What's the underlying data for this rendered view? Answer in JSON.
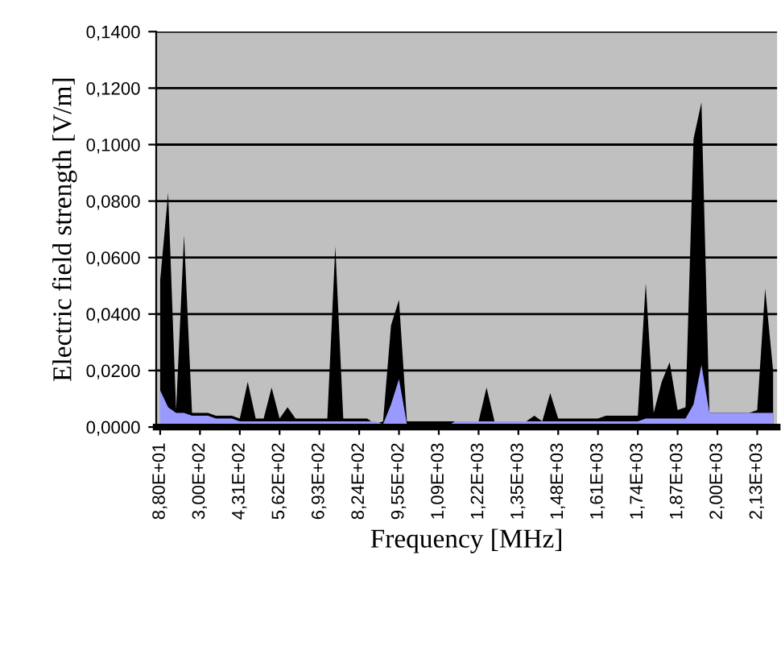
{
  "chart_data": {
    "type": "area",
    "xlabel": "Frequency [MHz]",
    "ylabel": "Electric field strength [V/m]",
    "categories": [
      "8,80E+01",
      null,
      null,
      null,
      null,
      "3,00E+02",
      null,
      null,
      null,
      null,
      "4,31E+02",
      null,
      null,
      null,
      null,
      "5,62E+02",
      null,
      null,
      null,
      null,
      "6,93E+02",
      null,
      null,
      null,
      null,
      "8,24E+02",
      null,
      null,
      null,
      null,
      "9,55E+02",
      null,
      null,
      null,
      null,
      "1,09E+03",
      null,
      null,
      null,
      null,
      "1,22E+03",
      null,
      null,
      null,
      null,
      "1,35E+03",
      null,
      null,
      null,
      null,
      "1,48E+03",
      null,
      null,
      null,
      null,
      "1,61E+03",
      null,
      null,
      null,
      null,
      "1,74E+03",
      null,
      null,
      null,
      null,
      "1,87E+03",
      null,
      null,
      null,
      null,
      "2,00E+03",
      null,
      null,
      null,
      null,
      "2,13E+03",
      null,
      null
    ],
    "series": [
      {
        "color": "#000000",
        "values": [
          0.052,
          0.083,
          0.006,
          0.068,
          0.005,
          0.005,
          0.005,
          0.004,
          0.004,
          0.004,
          0.003,
          0.016,
          0.003,
          0.003,
          0.014,
          0.003,
          0.007,
          0.003,
          0.003,
          0.003,
          0.003,
          0.003,
          0.064,
          0.003,
          0.003,
          0.003,
          0.003,
          0.001,
          0.002,
          0.036,
          0.045,
          0.002,
          0.002,
          0.002,
          0.002,
          0.002,
          0.002,
          0.002,
          0.002,
          0.002,
          0.002,
          0.014,
          0.002,
          0.002,
          0.002,
          0.002,
          0.002,
          0.004,
          0.002,
          0.012,
          0.003,
          0.003,
          0.003,
          0.003,
          0.003,
          0.003,
          0.004,
          0.004,
          0.004,
          0.004,
          0.004,
          0.051,
          0.005,
          0.016,
          0.023,
          0.006,
          0.007,
          0.102,
          0.115,
          0.005,
          0.005,
          0.005,
          0.005,
          0.005,
          0.005,
          0.006,
          0.049,
          0.02
        ]
      },
      {
        "color": "#9999ff",
        "values": [
          0.013,
          0.007,
          0.005,
          0.005,
          0.004,
          0.004,
          0.004,
          0.003,
          0.003,
          0.003,
          0.002,
          0.002,
          0.002,
          0.002,
          0.002,
          0.002,
          0.002,
          0.002,
          0.002,
          0.002,
          0.002,
          0.002,
          0.002,
          0.002,
          0.002,
          0.002,
          0.002,
          0.002,
          0.001,
          0.008,
          0.017,
          0.001,
          0.0,
          0.0,
          0.0,
          0.0,
          0.0,
          0.002,
          0.002,
          0.002,
          0.002,
          0.002,
          0.002,
          0.002,
          0.002,
          0.002,
          0.002,
          0.002,
          0.002,
          0.002,
          0.002,
          0.002,
          0.002,
          0.002,
          0.002,
          0.002,
          0.002,
          0.002,
          0.002,
          0.002,
          0.002,
          0.003,
          0.003,
          0.003,
          0.003,
          0.003,
          0.003,
          0.008,
          0.022,
          0.005,
          0.005,
          0.005,
          0.005,
          0.005,
          0.005,
          0.005,
          0.005,
          0.005
        ]
      }
    ],
    "ylim": [
      0,
      0.14
    ],
    "yticks": [
      {
        "value": 0,
        "label": "0,0000"
      },
      {
        "value": 0.02,
        "label": "0,0200"
      },
      {
        "value": 0.04,
        "label": "0,0400"
      },
      {
        "value": 0.06,
        "label": "0,0600"
      },
      {
        "value": 0.08,
        "label": "0,0800"
      },
      {
        "value": 0.1,
        "label": "0,1000"
      },
      {
        "value": 0.12,
        "label": "0,1200"
      },
      {
        "value": 0.14,
        "label": "0,1400"
      }
    ],
    "grid": "y"
  }
}
